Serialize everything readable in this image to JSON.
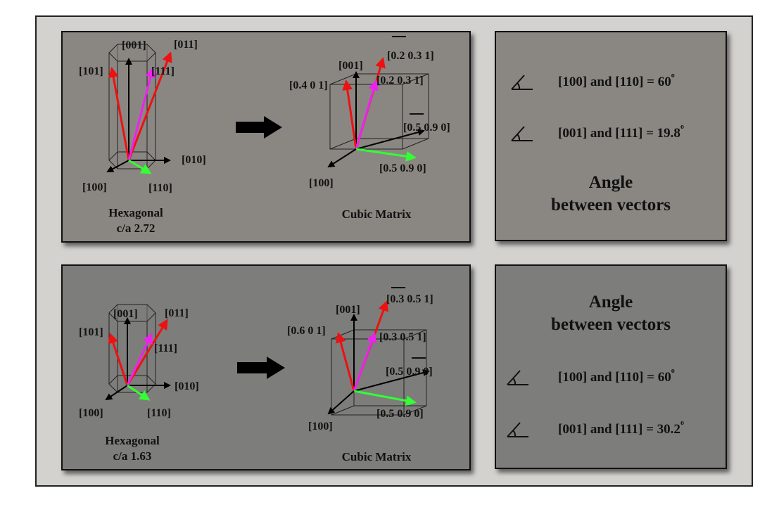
{
  "panels": {
    "top": {
      "hex": {
        "title": "Hexagonal",
        "ratio": "c/a 2.72",
        "labels": {
          "l001": "[001]",
          "l011": "[011]",
          "l101": "[101]",
          "l111": "[111]",
          "l010": "[010]",
          "l100": "[100]",
          "l110": "[110]"
        }
      },
      "cubic": {
        "title": "Cubic Matrix",
        "labels": {
          "l001": "[001]",
          "lnum": "[0.4 0 1]",
          "lbar1": "[0.2 0.3 1]",
          "lbar2": "[0.2 0.3 1]",
          "lbar3": "[0.5 0.9 0]",
          "lgreen": "[0.5 0.9 0]",
          "l100": "[100]"
        }
      },
      "angles": {
        "title_line1": "Angle",
        "title_line2": "between vectors",
        "row1": {
          "text": "[100] and [110] = 60",
          "deg": "o"
        },
        "row2": {
          "text": "[001] and [111] = 19.8",
          "deg": "o"
        }
      }
    },
    "bottom": {
      "hex": {
        "title": "Hexagonal",
        "ratio": "c/a 1.63",
        "labels": {
          "l001": "[001]",
          "l011": "[011]",
          "l101": "[101]",
          "l111": "[111]",
          "l010": "[010]",
          "l100": "[100]",
          "l110": "[110]"
        }
      },
      "cubic": {
        "title": "Cubic Matrix",
        "labels": {
          "l001": "[001]",
          "lnum": "[0.6 0 1]",
          "lbar1": "[0.3 0.5 1]",
          "lbar2": "[0.3 0.5 1]",
          "lbar3": "[0.5 0.9 0]",
          "lgreen": "[0.5 0.9 0]",
          "l100": "[100]"
        }
      },
      "angles": {
        "title_line1": "Angle",
        "title_line2": "between vectors",
        "row1": {
          "text": "[100] and [110] = 60",
          "deg": "o"
        },
        "row2": {
          "text": "[001] and [111] = 30.2",
          "deg": "o"
        }
      }
    }
  },
  "colors": {
    "red": "#ee1111",
    "magenta": "#ee22ee",
    "green": "#33ff33",
    "black": "#000000"
  }
}
